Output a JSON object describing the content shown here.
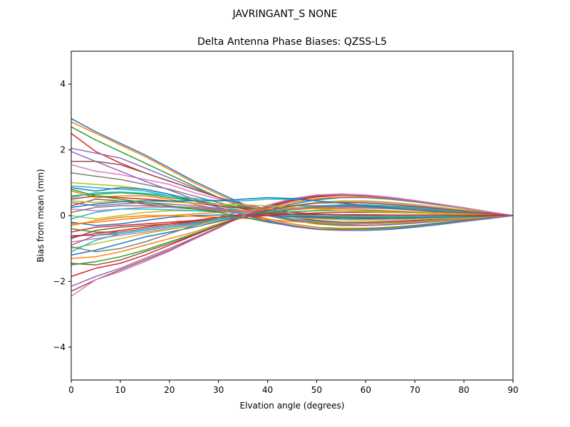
{
  "chart_data": {
    "type": "line",
    "suptitle": "JAVRINGANT_S    NONE",
    "title": "Delta Antenna Phase Biases: QZSS-L5",
    "xlabel": "Elvation angle (degrees)",
    "ylabel": "Bias from mean (mm)",
    "xlim": [
      0,
      90
    ],
    "ylim": [
      -5,
      5
    ],
    "xticks": [
      0,
      10,
      20,
      30,
      40,
      50,
      60,
      70,
      80,
      90
    ],
    "yticks": [
      -4,
      -2,
      0,
      2,
      4
    ],
    "ytick_labels": [
      "−4",
      "−2",
      "0",
      "2",
      "4"
    ],
    "grid": false,
    "legend": "none",
    "x": [
      0,
      5,
      10,
      15,
      20,
      25,
      30,
      35,
      40,
      45,
      50,
      55,
      60,
      65,
      70,
      75,
      80,
      85,
      90
    ],
    "colors": [
      "#1f77b4",
      "#ff7f0e",
      "#2ca02c",
      "#d62728",
      "#9467bd",
      "#8c564b",
      "#e377c2",
      "#7f7f7f",
      "#bcbd22",
      "#17becf"
    ],
    "series": [
      {
        "values": [
          2.95,
          2.55,
          2.2,
          1.85,
          1.45,
          1.05,
          0.7,
          0.35,
          0.1,
          -0.05,
          -0.15,
          -0.2,
          -0.2,
          -0.2,
          -0.15,
          -0.12,
          -0.08,
          -0.04,
          0
        ]
      },
      {
        "values": [
          2.85,
          2.5,
          2.15,
          1.8,
          1.4,
          1.0,
          0.65,
          0.3,
          0.05,
          -0.1,
          -0.2,
          -0.25,
          -0.25,
          -0.22,
          -0.18,
          -0.14,
          -0.1,
          -0.05,
          0
        ]
      },
      {
        "values": [
          2.7,
          2.3,
          1.95,
          1.6,
          1.25,
          0.9,
          0.55,
          0.25,
          0.0,
          -0.15,
          -0.25,
          -0.3,
          -0.3,
          -0.27,
          -0.22,
          -0.17,
          -0.12,
          -0.06,
          0
        ]
      },
      {
        "values": [
          2.5,
          1.95,
          1.6,
          1.3,
          1.05,
          0.8,
          0.55,
          0.3,
          0.1,
          -0.05,
          -0.15,
          -0.2,
          -0.2,
          -0.18,
          -0.15,
          -0.11,
          -0.08,
          -0.04,
          0
        ]
      },
      {
        "values": [
          2.05,
          1.9,
          1.75,
          1.45,
          1.15,
          0.85,
          0.55,
          0.28,
          0.05,
          -0.1,
          -0.2,
          -0.25,
          -0.25,
          -0.22,
          -0.18,
          -0.13,
          -0.09,
          -0.05,
          0
        ]
      },
      {
        "values": [
          1.65,
          1.65,
          1.55,
          1.3,
          1.05,
          0.8,
          0.55,
          0.35,
          0.2,
          0.1,
          0.05,
          0.02,
          0.0,
          -0.01,
          -0.01,
          -0.01,
          -0.01,
          0.0,
          0
        ]
      },
      {
        "values": [
          1.55,
          1.35,
          1.25,
          1.1,
          0.95,
          0.7,
          0.5,
          0.32,
          0.15,
          0.05,
          0.0,
          -0.03,
          -0.04,
          -0.04,
          -0.03,
          -0.02,
          -0.02,
          -0.01,
          0
        ]
      },
      {
        "values": [
          1.3,
          1.2,
          1.1,
          0.95,
          0.8,
          0.6,
          0.4,
          0.2,
          0.05,
          -0.1,
          -0.2,
          -0.25,
          -0.25,
          -0.23,
          -0.19,
          -0.14,
          -0.1,
          -0.05,
          0
        ]
      },
      {
        "values": [
          1.0,
          0.95,
          0.9,
          0.8,
          0.65,
          0.5,
          0.3,
          0.1,
          -0.1,
          -0.25,
          -0.35,
          -0.4,
          -0.4,
          -0.37,
          -0.3,
          -0.22,
          -0.15,
          -0.07,
          0
        ]
      },
      {
        "values": [
          0.9,
          0.85,
          0.8,
          0.75,
          0.6,
          0.45,
          0.3,
          0.15,
          0.0,
          -0.1,
          -0.18,
          -0.22,
          -0.23,
          -0.21,
          -0.18,
          -0.13,
          -0.09,
          -0.05,
          0
        ]
      },
      {
        "values": [
          0.85,
          0.75,
          0.85,
          0.8,
          0.65,
          0.45,
          0.25,
          0.05,
          -0.15,
          -0.3,
          -0.4,
          -0.45,
          -0.45,
          -0.42,
          -0.35,
          -0.27,
          -0.18,
          -0.09,
          0
        ]
      },
      {
        "values": [
          0.75,
          0.55,
          0.6,
          0.6,
          0.5,
          0.35,
          0.2,
          0.05,
          -0.1,
          -0.25,
          -0.35,
          -0.38,
          -0.38,
          -0.35,
          -0.3,
          -0.22,
          -0.15,
          -0.07,
          0
        ]
      },
      {
        "values": [
          0.6,
          0.65,
          0.7,
          0.65,
          0.55,
          0.45,
          0.35,
          0.25,
          0.15,
          0.05,
          -0.02,
          -0.05,
          -0.06,
          -0.06,
          -0.05,
          -0.04,
          -0.03,
          -0.02,
          0
        ]
      },
      {
        "values": [
          0.5,
          0.6,
          0.55,
          0.5,
          0.45,
          0.38,
          0.3,
          0.22,
          0.12,
          0.02,
          -0.05,
          -0.08,
          -0.09,
          -0.08,
          -0.07,
          -0.05,
          -0.04,
          -0.02,
          0
        ]
      },
      {
        "values": [
          0.4,
          0.3,
          0.35,
          0.4,
          0.35,
          0.3,
          0.22,
          0.12,
          0.0,
          -0.12,
          -0.22,
          -0.28,
          -0.3,
          -0.28,
          -0.23,
          -0.17,
          -0.12,
          -0.06,
          0
        ]
      },
      {
        "values": [
          0.3,
          0.5,
          0.45,
          0.35,
          0.25,
          0.2,
          0.15,
          0.1,
          0.05,
          0.0,
          -0.05,
          -0.08,
          -0.08,
          -0.08,
          -0.06,
          -0.05,
          -0.03,
          -0.02,
          0
        ]
      },
      {
        "values": [
          0.2,
          0.15,
          0.2,
          0.25,
          0.25,
          0.22,
          0.18,
          0.12,
          0.05,
          -0.02,
          -0.08,
          -0.12,
          -0.13,
          -0.12,
          -0.1,
          -0.08,
          -0.05,
          -0.03,
          0
        ]
      },
      {
        "values": [
          0.1,
          0.25,
          0.3,
          0.3,
          0.28,
          0.25,
          0.2,
          0.15,
          0.1,
          0.05,
          0.0,
          -0.02,
          -0.03,
          -0.03,
          -0.03,
          -0.02,
          -0.02,
          -0.01,
          0
        ]
      },
      {
        "values": [
          0.0,
          -0.1,
          0.0,
          0.1,
          0.15,
          0.15,
          0.12,
          0.08,
          0.02,
          -0.05,
          -0.1,
          -0.13,
          -0.14,
          -0.13,
          -0.11,
          -0.08,
          -0.06,
          -0.03,
          0
        ]
      },
      {
        "values": [
          -0.1,
          0.1,
          0.2,
          0.2,
          0.18,
          0.15,
          0.12,
          0.08,
          0.05,
          0.02,
          0.0,
          -0.01,
          -0.02,
          -0.02,
          -0.02,
          -0.01,
          -0.01,
          -0.01,
          0
        ]
      },
      {
        "values": [
          -0.2,
          -0.3,
          -0.25,
          -0.15,
          -0.05,
          0.0,
          0.02,
          0.02,
          0.0,
          -0.03,
          -0.06,
          -0.08,
          -0.09,
          -0.08,
          -0.07,
          -0.05,
          -0.04,
          -0.02,
          0
        ]
      },
      {
        "values": [
          -0.3,
          -0.15,
          -0.05,
          0.0,
          0.0,
          -0.02,
          -0.05,
          -0.08,
          -0.12,
          -0.18,
          -0.22,
          -0.25,
          -0.25,
          -0.23,
          -0.19,
          -0.15,
          -0.1,
          -0.05,
          0
        ]
      },
      {
        "values": [
          -0.4,
          -0.5,
          -0.5,
          -0.4,
          -0.3,
          -0.2,
          -0.1,
          0.0,
          0.08,
          0.12,
          0.15,
          0.15,
          0.14,
          0.12,
          0.1,
          0.08,
          0.05,
          0.03,
          0
        ]
      },
      {
        "values": [
          -0.5,
          -0.35,
          -0.3,
          -0.25,
          -0.2,
          -0.15,
          -0.1,
          -0.05,
          0.0,
          0.05,
          0.08,
          0.1,
          0.1,
          0.09,
          0.08,
          0.06,
          0.04,
          0.02,
          0
        ]
      },
      {
        "values": [
          -0.6,
          -0.6,
          -0.55,
          -0.45,
          -0.35,
          -0.22,
          -0.1,
          0.0,
          0.1,
          0.18,
          0.22,
          0.24,
          0.23,
          0.21,
          0.17,
          0.13,
          0.09,
          0.05,
          0
        ]
      },
      {
        "values": [
          -0.7,
          -0.45,
          -0.35,
          -0.3,
          -0.25,
          -0.18,
          -0.1,
          0.0,
          0.1,
          0.2,
          0.28,
          0.3,
          0.3,
          0.27,
          0.22,
          0.17,
          0.12,
          0.06,
          0
        ]
      },
      {
        "values": [
          -0.8,
          -0.7,
          -0.6,
          -0.5,
          -0.4,
          -0.28,
          -0.15,
          0.0,
          0.15,
          0.28,
          0.38,
          0.42,
          0.42,
          0.38,
          0.31,
          0.24,
          0.16,
          0.08,
          0
        ]
      },
      {
        "values": [
          -0.9,
          -0.6,
          -0.5,
          -0.4,
          -0.3,
          -0.2,
          -0.1,
          0.02,
          0.12,
          0.2,
          0.25,
          0.28,
          0.28,
          0.26,
          0.21,
          0.16,
          0.11,
          0.06,
          0
        ]
      },
      {
        "values": [
          -1.0,
          -0.85,
          -0.7,
          -0.55,
          -0.42,
          -0.3,
          -0.15,
          0.0,
          0.15,
          0.3,
          0.4,
          0.45,
          0.45,
          0.41,
          0.34,
          0.26,
          0.18,
          0.09,
          0
        ]
      },
      {
        "values": [
          -1.1,
          -0.75,
          -0.55,
          -0.45,
          -0.35,
          -0.25,
          -0.12,
          0.0,
          0.12,
          0.22,
          0.3,
          0.33,
          0.33,
          0.3,
          0.25,
          0.19,
          0.13,
          0.07,
          0
        ]
      },
      {
        "values": [
          -1.2,
          -1.05,
          -0.85,
          -0.65,
          -0.5,
          -0.35,
          -0.18,
          0.0,
          0.18,
          0.35,
          0.48,
          0.55,
          0.55,
          0.5,
          0.42,
          0.32,
          0.22,
          0.11,
          0
        ]
      },
      {
        "values": [
          -1.3,
          -1.25,
          -1.1,
          -0.9,
          -0.7,
          -0.5,
          -0.25,
          0.0,
          0.22,
          0.4,
          0.52,
          0.57,
          0.57,
          0.52,
          0.43,
          0.33,
          0.22,
          0.11,
          0
        ]
      },
      {
        "values": [
          -1.5,
          -1.4,
          -1.25,
          -1.05,
          -0.8,
          -0.55,
          -0.28,
          0.0,
          0.25,
          0.45,
          0.58,
          0.63,
          0.62,
          0.56,
          0.46,
          0.35,
          0.24,
          0.12,
          0
        ]
      },
      {
        "values": [
          -1.85,
          -1.6,
          -1.45,
          -1.2,
          -0.9,
          -0.6,
          -0.3,
          0.0,
          0.25,
          0.45,
          0.57,
          0.62,
          0.6,
          0.54,
          0.45,
          0.34,
          0.23,
          0.12,
          0
        ]
      },
      {
        "values": [
          -2.15,
          -1.85,
          -1.6,
          -1.3,
          -1.0,
          -0.68,
          -0.35,
          0.0,
          0.3,
          0.5,
          0.6,
          0.63,
          0.6,
          0.53,
          0.44,
          0.33,
          0.22,
          0.11,
          0
        ]
      },
      {
        "values": [
          -2.3,
          -1.95,
          -1.65,
          -1.35,
          -1.05,
          -0.7,
          -0.35,
          0.0,
          0.28,
          0.48,
          0.6,
          0.64,
          0.62,
          0.55,
          0.45,
          0.34,
          0.23,
          0.11,
          0
        ]
      },
      {
        "values": [
          -2.45,
          -1.95,
          -1.7,
          -1.4,
          -1.08,
          -0.72,
          -0.38,
          0.0,
          0.32,
          0.52,
          0.63,
          0.66,
          0.63,
          0.56,
          0.46,
          0.35,
          0.23,
          0.12,
          0
        ]
      },
      {
        "values": [
          -0.95,
          -1.1,
          -1.0,
          -0.8,
          -0.55,
          -0.3,
          -0.05,
          0.15,
          0.25,
          0.3,
          0.3,
          0.28,
          0.26,
          0.22,
          0.18,
          0.14,
          0.09,
          0.05,
          0
        ]
      },
      {
        "values": [
          0.45,
          0.4,
          0.45,
          0.45,
          0.42,
          0.38,
          0.35,
          0.33,
          0.3,
          0.25,
          0.2,
          0.15,
          0.12,
          0.1,
          0.08,
          0.06,
          0.04,
          0.02,
          0
        ]
      },
      {
        "values": [
          0.55,
          0.7,
          0.72,
          0.68,
          0.6,
          0.52,
          0.45,
          0.45,
          0.5,
          0.5,
          0.45,
          0.38,
          0.3,
          0.23,
          0.17,
          0.12,
          0.08,
          0.04,
          0
        ]
      },
      {
        "values": [
          0.25,
          0.35,
          0.42,
          0.45,
          0.45,
          0.45,
          0.45,
          0.5,
          0.55,
          0.52,
          0.45,
          0.38,
          0.3,
          0.23,
          0.17,
          0.12,
          0.08,
          0.04,
          0
        ]
      },
      {
        "values": [
          -0.25,
          -0.2,
          -0.12,
          -0.05,
          0.0,
          0.05,
          0.1,
          0.15,
          0.2,
          0.22,
          0.22,
          0.2,
          0.18,
          0.15,
          0.12,
          0.09,
          0.06,
          0.03,
          0
        ]
      },
      {
        "values": [
          0.8,
          0.6,
          0.5,
          0.4,
          0.3,
          0.2,
          0.1,
          -0.05,
          -0.2,
          -0.32,
          -0.4,
          -0.42,
          -0.4,
          -0.36,
          -0.3,
          -0.22,
          -0.15,
          -0.07,
          0
        ]
      },
      {
        "values": [
          -0.65,
          -0.55,
          -0.45,
          -0.35,
          -0.25,
          -0.15,
          -0.05,
          0.02,
          0.05,
          0.05,
          0.04,
          0.03,
          0.03,
          0.02,
          0.02,
          0.02,
          0.01,
          0.01,
          0
        ]
      },
      {
        "values": [
          1.95,
          1.65,
          1.35,
          1.05,
          0.78,
          0.5,
          0.25,
          0.02,
          -0.18,
          -0.33,
          -0.42,
          -0.45,
          -0.44,
          -0.4,
          -0.33,
          -0.25,
          -0.17,
          -0.08,
          0
        ]
      },
      {
        "values": [
          -1.45,
          -1.5,
          -1.35,
          -1.1,
          -0.85,
          -0.58,
          -0.3,
          -0.05,
          0.15,
          0.3,
          0.38,
          0.4,
          0.38,
          0.34,
          0.28,
          0.21,
          0.14,
          0.07,
          0
        ]
      }
    ]
  }
}
